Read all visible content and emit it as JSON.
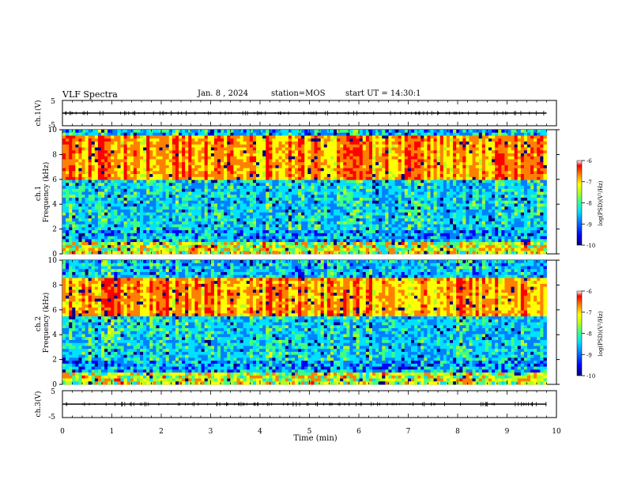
{
  "header": {
    "title": "VLF Spectra",
    "date": "Jan. 8 , 2024",
    "station": "station=MOS",
    "start": "start UT = 14:30:1"
  },
  "colors": {
    "colormap": [
      "#00007f",
      "#0000ff",
      "#0080ff",
      "#00e0ff",
      "#40ff80",
      "#b0ff20",
      "#ffff00",
      "#ff8000",
      "#ff0000",
      "#ffffff"
    ],
    "background": "#ffffff",
    "trace": "#000000"
  },
  "chart_data": [
    {
      "type": "line",
      "panel": "ch1-waveform",
      "ylabel": "ch.1(V)",
      "ylim": [
        -5,
        5
      ],
      "yticks": [
        "5",
        "-5"
      ],
      "baseline_value": 0,
      "xlim": [
        0,
        10
      ]
    },
    {
      "type": "heatmap",
      "panel": "ch1-spectrogram",
      "ylabel": "ch.1 Frequency (kHz)",
      "ylim": [
        0,
        10
      ],
      "yticks": [
        "0",
        "2",
        "4",
        "6",
        "8",
        "10"
      ],
      "xlim": [
        0,
        10
      ],
      "data_end_min": 9.8,
      "colorbar": {
        "label": "log(PSD)(V²/Hz)",
        "range": [
          -10,
          -6
        ],
        "ticks": [
          "-6",
          "-7",
          "-8",
          "-9",
          "-10"
        ]
      },
      "dominant_band_khz": [
        6,
        9.5
      ],
      "peak_log_psd": -6.5
    },
    {
      "type": "heatmap",
      "panel": "ch2-spectrogram",
      "ylabel": "ch.2 Frequency (kHz)",
      "ylim": [
        0,
        10
      ],
      "yticks": [
        "0",
        "2",
        "4",
        "6",
        "8",
        "10"
      ],
      "xlim": [
        0,
        10
      ],
      "data_end_min": 9.8,
      "colorbar": {
        "label": "log(PSD)(V²/Hz)",
        "range": [
          -10,
          -6
        ],
        "ticks": [
          "-6",
          "-7",
          "-8",
          "-9",
          "-10"
        ]
      },
      "dominant_band_khz": [
        5.5,
        8.5
      ],
      "peak_log_psd": -6.5
    },
    {
      "type": "line",
      "panel": "ch3-waveform",
      "ylabel": "ch.3(V)",
      "ylim": [
        -5,
        5
      ],
      "yticks": [
        "5",
        "-5"
      ],
      "baseline_value": 0,
      "xlim": [
        0,
        10
      ],
      "xlabel": "Time (min)",
      "xticks": [
        "0",
        "1",
        "2",
        "3",
        "4",
        "5",
        "6",
        "7",
        "8",
        "9",
        "10"
      ]
    }
  ]
}
